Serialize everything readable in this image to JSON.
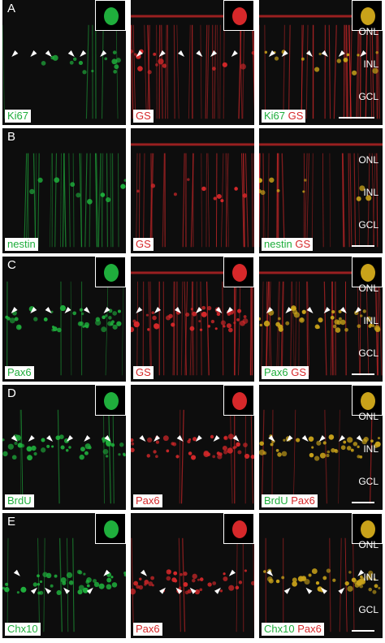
{
  "figure": {
    "rows": [
      {
        "letter": "A",
        "inset": true,
        "stains": [
          [
            {
              "text": "Ki67",
              "color": "g"
            }
          ],
          [
            {
              "text": "GS",
              "color": "r"
            }
          ],
          [
            {
              "text": "Ki67",
              "color": "g"
            },
            {
              "text": "GS",
              "color": "r"
            }
          ]
        ],
        "layers": [
          "ONL",
          "INL",
          "GCL"
        ],
        "arrowheads": [
          "down-left",
          "down-left",
          "down-right",
          "down-right",
          "down-left",
          "down-left"
        ]
      },
      {
        "letter": "B",
        "inset": false,
        "stains": [
          [
            {
              "text": "nestin",
              "color": "g"
            }
          ],
          [
            {
              "text": "GS",
              "color": "r"
            }
          ],
          [
            {
              "text": "nestin",
              "color": "g"
            },
            {
              "text": "GS",
              "color": "r"
            }
          ]
        ],
        "layers": [
          "ONL",
          "INL",
          "GCL"
        ],
        "arrowheads": []
      },
      {
        "letter": "C",
        "inset": true,
        "stains": [
          [
            {
              "text": "Pax6",
              "color": "g"
            }
          ],
          [
            {
              "text": "GS",
              "color": "r"
            }
          ],
          [
            {
              "text": "Pax6",
              "color": "g"
            },
            {
              "text": "GS",
              "color": "r"
            }
          ]
        ],
        "layers": [
          "ONL",
          "INL",
          "GCL"
        ],
        "arrowheads": [
          "down-left",
          "down-left",
          "down-right",
          "down-left",
          "down-right",
          "down-left"
        ]
      },
      {
        "letter": "D",
        "inset": true,
        "stains": [
          [
            {
              "text": "BrdU",
              "color": "g"
            }
          ],
          [
            {
              "text": "Pax6",
              "color": "r"
            }
          ],
          [
            {
              "text": "BrdU",
              "color": "g"
            },
            {
              "text": "Pax6",
              "color": "r"
            }
          ]
        ],
        "layers": [
          "ONL",
          "INL",
          "GCL"
        ],
        "arrowheads": [
          "down-right",
          "down-left",
          "down-right",
          "down-left",
          "down-left",
          "down-right"
        ]
      },
      {
        "letter": "E",
        "inset": true,
        "stains": [
          [
            {
              "text": "Chx10",
              "color": "g"
            }
          ],
          [
            {
              "text": "Pax6",
              "color": "r"
            }
          ],
          [
            {
              "text": "Chx10",
              "color": "g"
            },
            {
              "text": "Pax6",
              "color": "r"
            }
          ]
        ],
        "layers": [
          "ONL",
          "INL",
          "GCL"
        ],
        "arrowheads": [
          "down-right",
          "up-right",
          "up-left",
          "up-left",
          "up-right",
          "down-left"
        ]
      }
    ],
    "colors": {
      "green": "#1fae3c",
      "red": "#d6282a",
      "merge": "#c9a21a",
      "background": "#0d0d0d"
    }
  }
}
